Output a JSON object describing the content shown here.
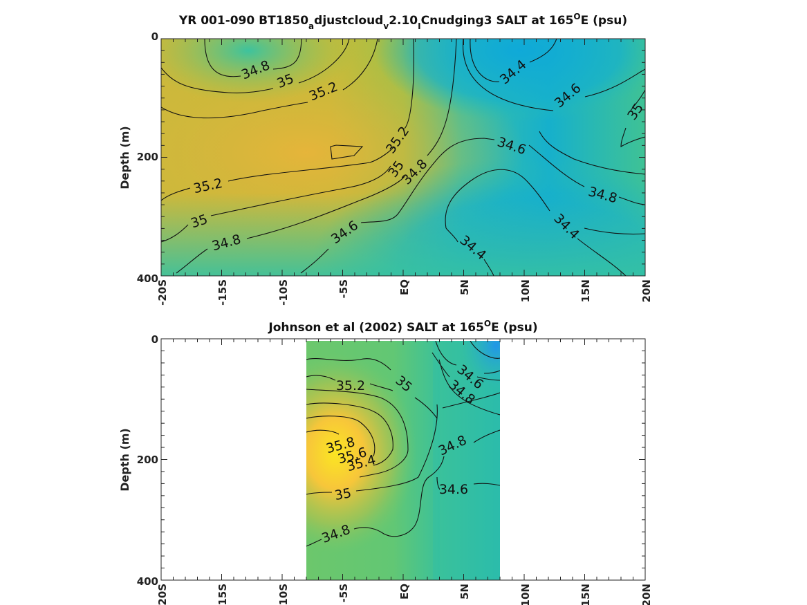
{
  "chart_data": [
    {
      "type": "heatmap",
      "title_parts": [
        "YR 001-090 BT1850",
        "a",
        "djustcloud",
        "v",
        "2.10",
        "I",
        "Cnudging3 SALT at 165",
        "O",
        "E (psu)"
      ],
      "xlabel": "",
      "ylabel": "Depth (m)",
      "x_ticks": [
        "-20S",
        "-15S",
        "-10S",
        "-5S",
        "EQ",
        "5N",
        "10N",
        "15N",
        "20N"
      ],
      "y_ticks": [
        "0",
        "200",
        "400"
      ],
      "xlim": [
        -20,
        20
      ],
      "ylim": [
        0,
        400
      ],
      "colors": {
        "high": "#f5e03a",
        "mid": "#c8bc3a",
        "low": "#1aa3dc"
      },
      "contour_labels": [
        "34.8",
        "35",
        "35.2",
        "34.4",
        "34.6",
        "35",
        "35.2",
        "35",
        "34.8",
        "34.6",
        "35.2",
        "35",
        "34.8",
        "34.6",
        "34.4",
        "34.8",
        "34.4"
      ]
    },
    {
      "type": "heatmap",
      "title_parts": [
        "Johnson et al (2002) SALT at 165",
        "O",
        "E (psu)"
      ],
      "xlabel": "",
      "ylabel": "Depth (m)",
      "x_ticks": [
        "-20S",
        "-15S",
        "-10S",
        "-5S",
        "EQ",
        "5N",
        "10N",
        "15N",
        "20N"
      ],
      "y_ticks": [
        "0",
        "200",
        "400"
      ],
      "xlim": [
        -20,
        20
      ],
      "ylim": [
        0,
        400
      ],
      "data_xrange": [
        -8,
        8
      ],
      "colors": {
        "high": "#fbe622",
        "mid": "#5cc77a",
        "low": "#2196e8"
      },
      "contour_labels": [
        "35.2",
        "35",
        "34.6",
        "34.8",
        "35.8",
        "35.6",
        "35.4",
        "34.8",
        "35",
        "34.6",
        "34.8"
      ]
    }
  ]
}
